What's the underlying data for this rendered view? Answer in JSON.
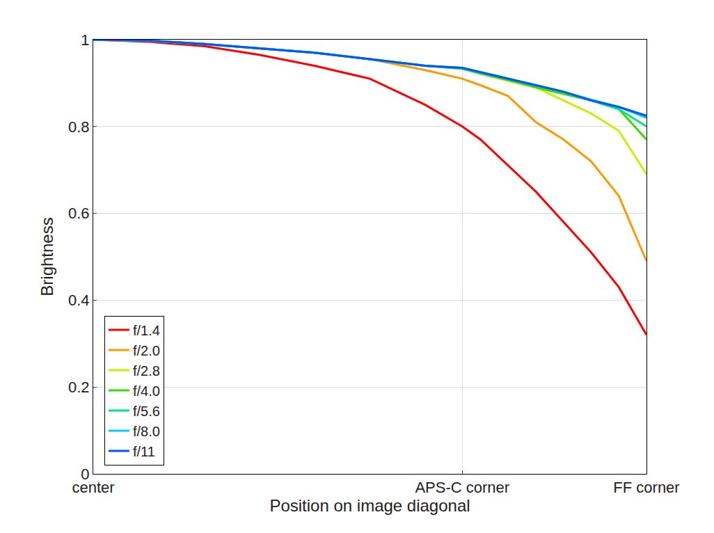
{
  "chart_data": {
    "type": "line",
    "x_label": "Position on image diagonal",
    "y_label": "Brightness",
    "x": [
      0,
      0.1,
      0.2,
      0.3,
      0.4,
      0.5,
      0.6,
      0.667,
      0.7,
      0.75,
      0.8,
      0.85,
      0.9,
      0.95,
      1
    ],
    "xlim": [
      0,
      1
    ],
    "xticks": [
      {
        "value": 0,
        "label": "center"
      },
      {
        "value": 0.667,
        "label": "APS-C corner"
      },
      {
        "value": 1,
        "label": "FF corner"
      }
    ],
    "ylim": [
      0,
      1
    ],
    "yticks": [
      0,
      0.2,
      0.4,
      0.6,
      0.8,
      1
    ],
    "grid": true,
    "legend": "lower left",
    "series": [
      {
        "name": "f/1.4",
        "color": "#ff0000",
        "values": [
          1,
          0.995,
          0.985,
          0.965,
          0.94,
          0.91,
          0.85,
          0.8,
          0.77,
          0.71,
          0.65,
          0.58,
          0.51,
          0.43,
          0.32
        ]
      },
      {
        "name": "f/2.0",
        "color": "#ff9900",
        "values": [
          1,
          0.997,
          0.99,
          0.98,
          0.97,
          0.955,
          0.93,
          0.91,
          0.895,
          0.87,
          0.81,
          0.77,
          0.72,
          0.64,
          0.49
        ]
      },
      {
        "name": "f/2.8",
        "color": "#c8f000",
        "values": [
          1,
          0.998,
          0.99,
          0.98,
          0.97,
          0.955,
          0.94,
          0.933,
          0.922,
          0.905,
          0.89,
          0.86,
          0.83,
          0.79,
          0.69
        ]
      },
      {
        "name": "f/4.0",
        "color": "#33dd00",
        "values": [
          1,
          0.998,
          0.99,
          0.98,
          0.97,
          0.955,
          0.94,
          0.933,
          0.922,
          0.907,
          0.89,
          0.875,
          0.86,
          0.84,
          0.77
        ]
      },
      {
        "name": "f/5.6",
        "color": "#00e680",
        "values": [
          1,
          0.998,
          0.99,
          0.98,
          0.97,
          0.955,
          0.94,
          0.934,
          0.924,
          0.91,
          0.895,
          0.88,
          0.86,
          0.84,
          0.8
        ]
      },
      {
        "name": "f/8.0",
        "color": "#00ccff",
        "values": [
          1,
          0.998,
          0.99,
          0.98,
          0.97,
          0.955,
          0.94,
          0.935,
          0.925,
          0.91,
          0.895,
          0.88,
          0.862,
          0.845,
          0.82
        ]
      },
      {
        "name": "f/11",
        "color": "#0055ff",
        "values": [
          1,
          0.998,
          0.99,
          0.98,
          0.97,
          0.955,
          0.94,
          0.935,
          0.925,
          0.91,
          0.895,
          0.88,
          0.86,
          0.845,
          0.825
        ]
      }
    ]
  }
}
